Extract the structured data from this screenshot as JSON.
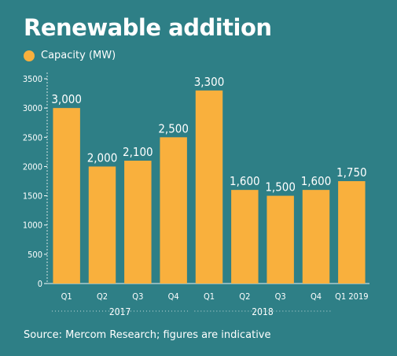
{
  "chart_data": {
    "type": "bar",
    "title": "Renewable addition",
    "legend": [
      "Capacity (MW)"
    ],
    "legend_position": "top-left",
    "categories": [
      "Q1",
      "Q2",
      "Q3",
      "Q4",
      "Q1",
      "Q2",
      "Q3",
      "Q4",
      "Q1 2019"
    ],
    "groups": [
      {
        "label": "2017",
        "categories": [
          0,
          1,
          2,
          3
        ]
      },
      {
        "label": "2018",
        "categories": [
          4,
          5,
          6,
          7
        ]
      }
    ],
    "series": [
      {
        "name": "Capacity (MW)",
        "values": [
          3000,
          2000,
          2100,
          2500,
          3300,
          1600,
          1500,
          1600,
          1750
        ],
        "color": "#f9b03d"
      }
    ],
    "data_labels": [
      "3,000",
      "2,000",
      "2,100",
      "2,500",
      "3,300",
      "1,600",
      "1,500",
      "1,600",
      "1,750"
    ],
    "yticks": [
      0,
      500,
      1000,
      1500,
      2000,
      2500,
      3000,
      3500
    ],
    "ylim": [
      0,
      3500
    ],
    "grid": false,
    "source": "Source: Mercom Research; figures are indicative"
  },
  "colors": {
    "background": "#2e7f86",
    "bar": "#f9b03d",
    "text": "#ffffff"
  }
}
